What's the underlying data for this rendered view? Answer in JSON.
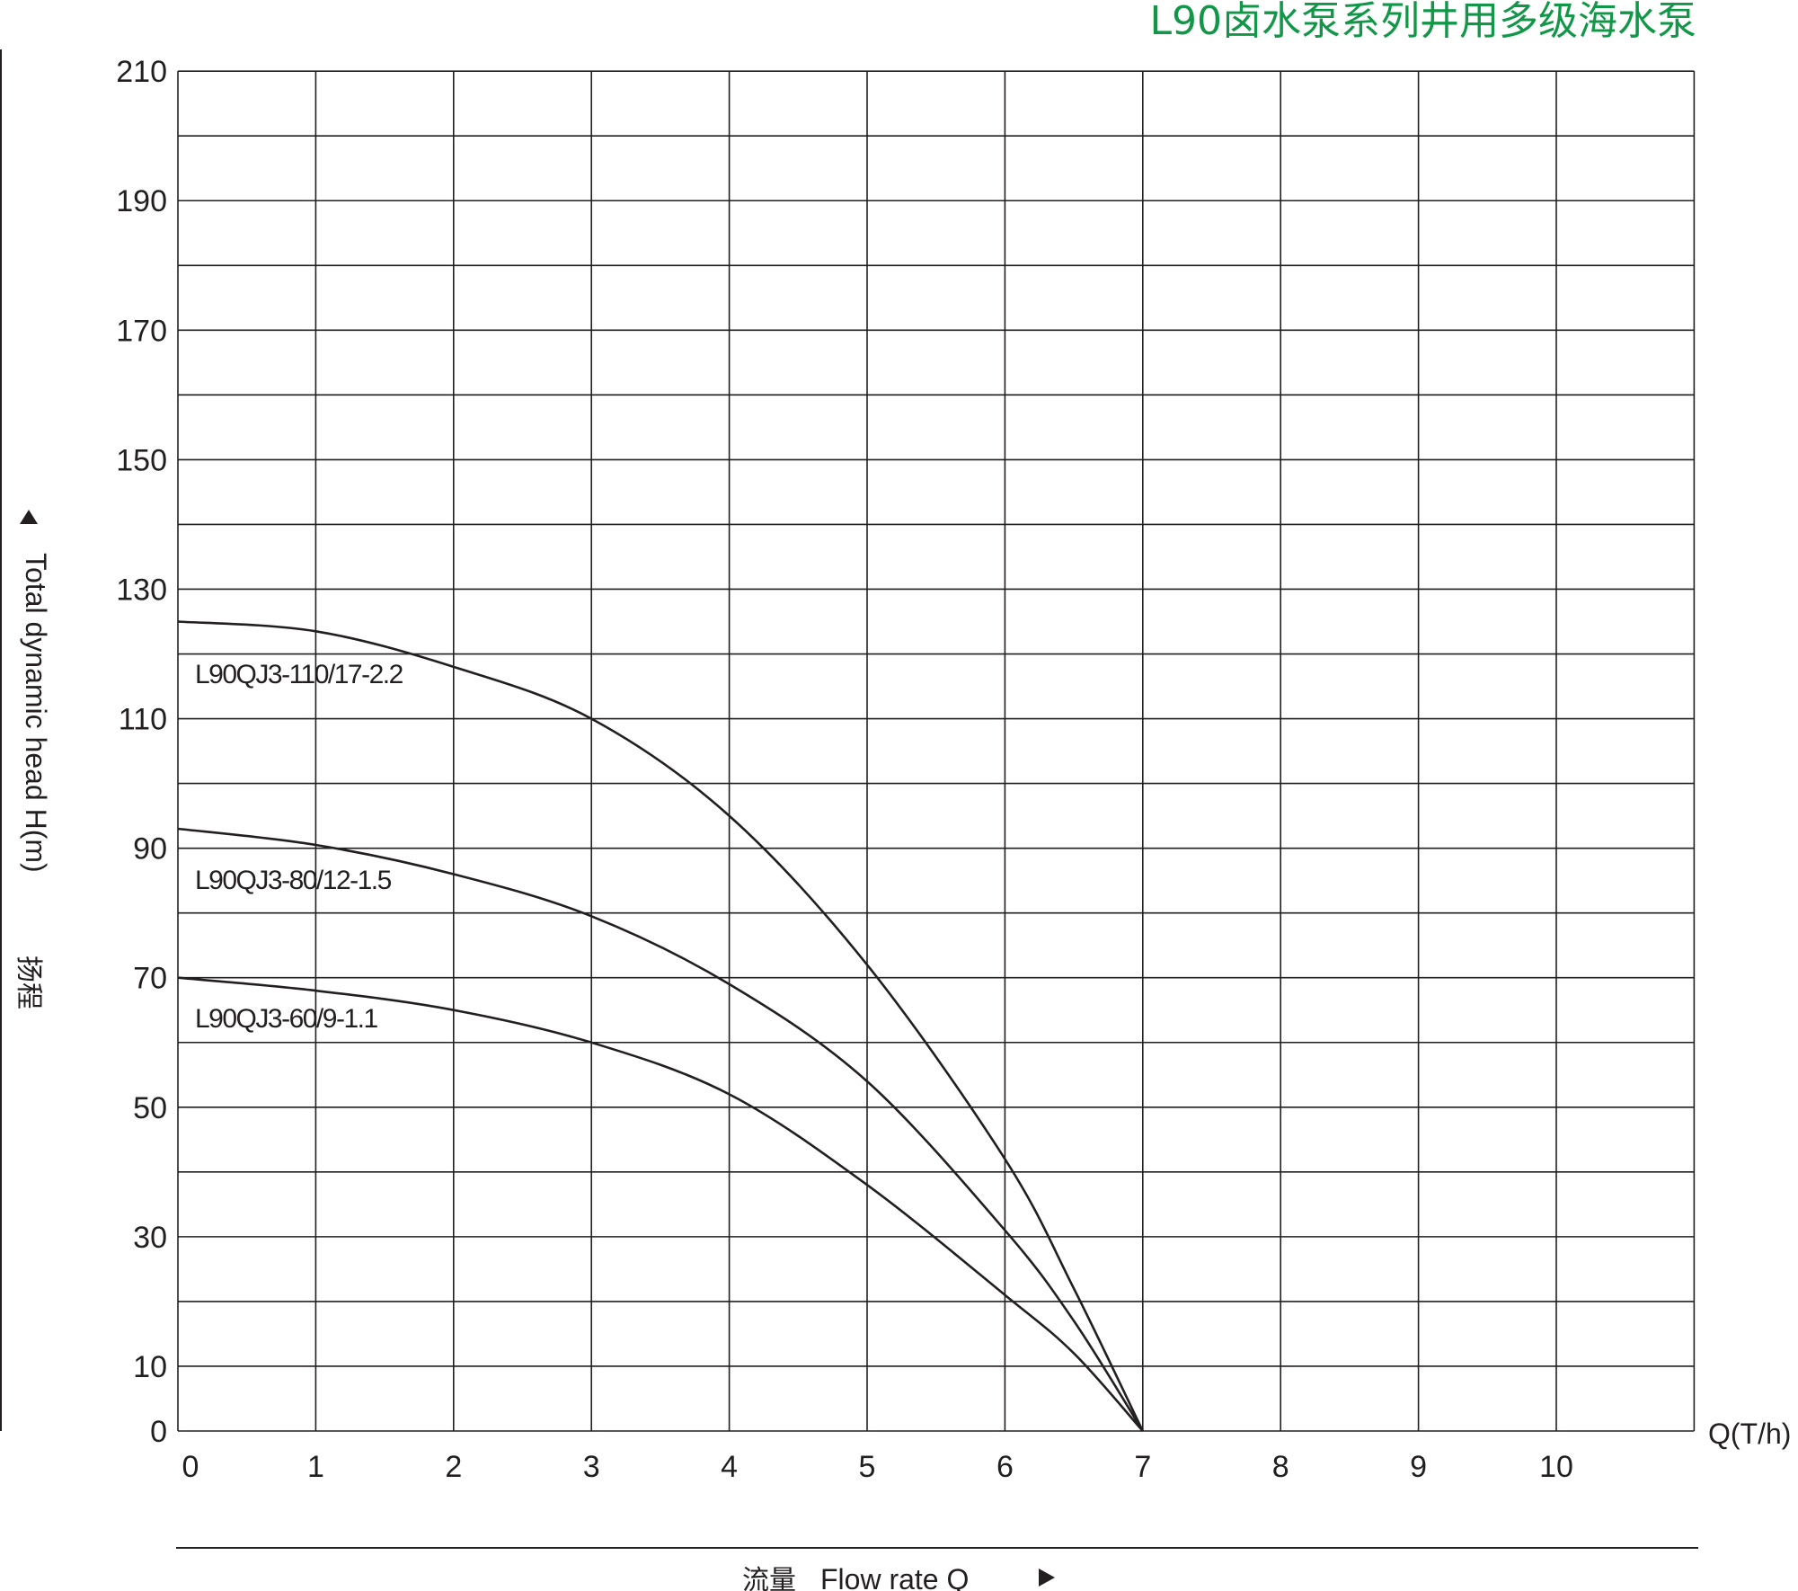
{
  "colors": {
    "title": "#129648",
    "line": "#231f20",
    "grid": "#231f20",
    "background": "#ffffff"
  },
  "chart_data": {
    "type": "line",
    "title": "L90卤水泵系列井用多级海水泵",
    "xlabel": "Flow rate Q",
    "xlabel_cn": "流量",
    "xunit": "Q(T/h)",
    "ylabel": "Total dynamic head H(m)",
    "ylabel_cn": "扬程",
    "xlim": [
      0,
      11
    ],
    "ylim": [
      0,
      210
    ],
    "x_ticks": [
      0,
      1,
      2,
      3,
      4,
      5,
      6,
      7,
      8,
      9,
      10
    ],
    "y_ticks": [
      0,
      10,
      30,
      50,
      70,
      90,
      110,
      130,
      150,
      170,
      190,
      210
    ],
    "grid": true,
    "series": [
      {
        "name": "L90QJ3-110/17-2.2",
        "x": [
          0,
          1,
          2,
          3,
          4,
          5,
          6,
          6.5,
          7
        ],
        "y": [
          125,
          123.5,
          118,
          110,
          95,
          72,
          42,
          22,
          0
        ]
      },
      {
        "name": "L90QJ3-80/12-1.5",
        "x": [
          0,
          1,
          2,
          3,
          4,
          5,
          6,
          6.5,
          7
        ],
        "y": [
          93,
          90.5,
          86,
          79.5,
          69,
          54,
          31,
          17,
          0
        ]
      },
      {
        "name": "L90QJ3-60/9-1.1",
        "x": [
          0,
          1,
          2,
          3,
          4,
          5,
          6,
          6.5,
          7
        ],
        "y": [
          70,
          68,
          65,
          60,
          52,
          38,
          21,
          12,
          0
        ]
      }
    ]
  }
}
